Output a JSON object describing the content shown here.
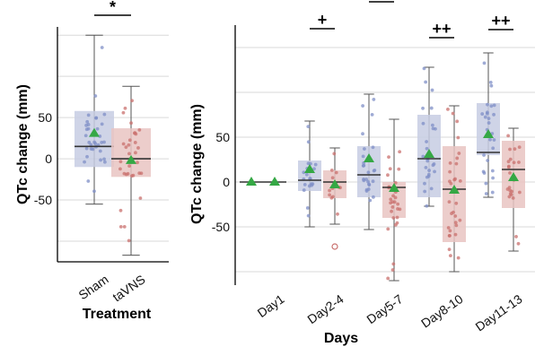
{
  "colors": {
    "sham": "#7f8fc7",
    "tavns": "#c9706d",
    "sham_box": "#c7cce3",
    "tavns_box": "#e9c4c2",
    "mean": "#35a845",
    "grid": "#d9d9d9"
  },
  "chart_data": [
    {
      "type": "box",
      "xlabel": "Treatment",
      "ylabel": "QTc change (mm)",
      "ylim": [
        -125,
        160
      ],
      "yticks": [
        -50,
        0,
        50
      ],
      "gridlines": [
        -100,
        -50,
        0,
        50,
        100,
        150
      ],
      "grid": true,
      "categories": [
        "Sham",
        "taVNS"
      ],
      "series": [
        {
          "name": "Sham",
          "q1": -10,
          "median": 15,
          "q3": 58,
          "whisker_low": -55,
          "whisker_high": 150,
          "mean": 31
        },
        {
          "name": "taVNS",
          "q1": -22,
          "median": 0,
          "q3": 37,
          "whisker_low": -117,
          "whisker_high": 88,
          "mean": -2
        }
      ],
      "significance": [
        {
          "between": [
            "Sham",
            "taVNS"
          ],
          "label": "*"
        }
      ]
    },
    {
      "type": "box",
      "xlabel": "Days",
      "ylabel": "QTc change (mm)",
      "ylim": [
        -115,
        175
      ],
      "yticks": [
        -50,
        0,
        50
      ],
      "gridlines": [
        -100,
        -50,
        0,
        50,
        100,
        150
      ],
      "grid": true,
      "categories": [
        "Day1",
        "Day2-4",
        "Day5-7",
        "Day8-10",
        "Day11-13"
      ],
      "series": [
        {
          "name": "Sham",
          "boxes": [
            {
              "q1": 0,
              "median": 0,
              "q3": 0,
              "whisker_low": 0,
              "whisker_high": 0,
              "mean": 0
            },
            {
              "q1": -10,
              "median": 2,
              "q3": 24,
              "whisker_low": -50,
              "whisker_high": 68,
              "mean": 14
            },
            {
              "q1": -17,
              "median": 8,
              "q3": 40,
              "whisker_low": -53,
              "whisker_high": 98,
              "mean": 26
            },
            {
              "q1": -17,
              "median": 26,
              "q3": 75,
              "whisker_low": -27,
              "whisker_high": 128,
              "mean": 31
            },
            {
              "q1": 30,
              "median": 33,
              "q3": 88,
              "whisker_low": -17,
              "whisker_high": 144,
              "mean": 53
            }
          ]
        },
        {
          "name": "taVNS",
          "boxes": [
            {
              "q1": 0,
              "median": 0,
              "q3": 0,
              "whisker_low": 0,
              "whisker_high": 0,
              "mean": 0
            },
            {
              "q1": -18,
              "median": 0,
              "q3": 13,
              "whisker_low": -47,
              "whisker_high": 38,
              "mean": -3
            },
            {
              "q1": -40,
              "median": -6,
              "q3": 0,
              "whisker_low": -110,
              "whisker_high": 70,
              "mean": -7
            },
            {
              "q1": -67,
              "median": -8,
              "q3": 40,
              "whisker_low": -100,
              "whisker_high": 85,
              "mean": -9
            },
            {
              "q1": -29,
              "median": 14,
              "q3": 46,
              "whisker_low": -77,
              "whisker_high": 60,
              "mean": 5
            }
          ]
        }
      ],
      "outliers": [
        {
          "category": "Day2-4",
          "series": "taVNS",
          "value": -72
        }
      ],
      "significance": [
        {
          "category": "Day2-4",
          "label": "+"
        },
        {
          "category": "Day5-7",
          "label": "++"
        },
        {
          "category": "Day8-10",
          "label": "++"
        },
        {
          "category": "Day11-13",
          "label": "++"
        }
      ]
    }
  ]
}
